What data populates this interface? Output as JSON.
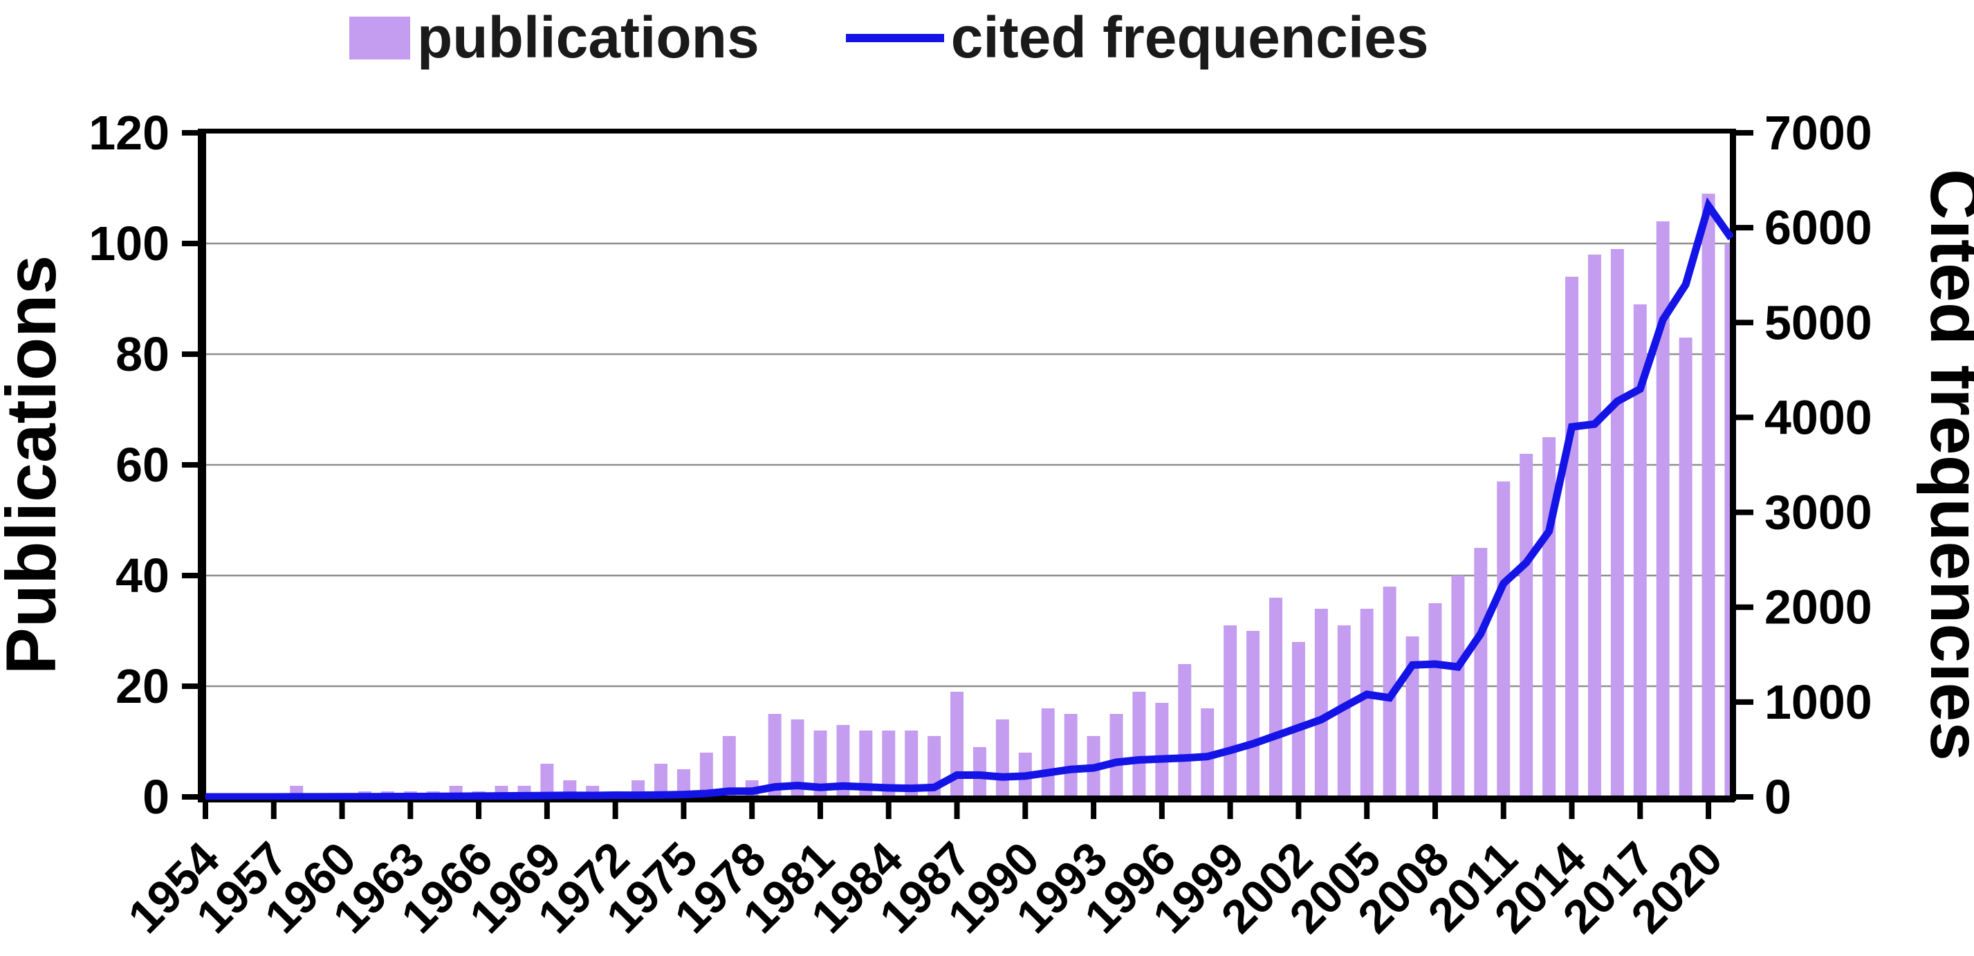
{
  "chart_data": {
    "type": "combo",
    "title": "",
    "xlabel": "",
    "ylabel_left": "Publications",
    "ylabel_right": "Cited frequencies",
    "ylim_left": [
      0,
      120
    ],
    "ylim_right": [
      0,
      7000
    ],
    "yticks_left": [
      0,
      20,
      40,
      60,
      80,
      100,
      120
    ],
    "yticks_right": [
      0,
      1000,
      2000,
      3000,
      4000,
      5000,
      6000,
      7000
    ],
    "xticks": [
      1954,
      1957,
      1960,
      1963,
      1966,
      1969,
      1972,
      1975,
      1978,
      1981,
      1984,
      1987,
      1990,
      1993,
      1996,
      1999,
      2002,
      2005,
      2008,
      2011,
      2014,
      2017,
      2020
    ],
    "grid": true,
    "legend_position": "top",
    "x": [
      1954,
      1955,
      1956,
      1957,
      1958,
      1959,
      1960,
      1961,
      1962,
      1963,
      1964,
      1965,
      1966,
      1967,
      1968,
      1969,
      1970,
      1971,
      1972,
      1973,
      1974,
      1975,
      1976,
      1977,
      1978,
      1979,
      1980,
      1981,
      1982,
      1983,
      1984,
      1985,
      1986,
      1987,
      1988,
      1989,
      1990,
      1991,
      1992,
      1993,
      1994,
      1995,
      1996,
      1997,
      1998,
      1999,
      2000,
      2001,
      2002,
      2003,
      2004,
      2005,
      2006,
      2007,
      2008,
      2009,
      2010,
      2011,
      2012,
      2013,
      2014,
      2015,
      2016,
      2017,
      2018,
      2019,
      2020,
      2021
    ],
    "series": [
      {
        "name": "publications",
        "type": "bar",
        "axis": "left",
        "color": "#c49df0",
        "values": [
          0,
          0,
          0,
          0,
          2,
          0,
          0,
          1,
          1,
          1,
          1,
          2,
          1,
          2,
          2,
          6,
          3,
          2,
          1,
          3,
          6,
          5,
          8,
          11,
          3,
          15,
          14,
          12,
          13,
          12,
          12,
          12,
          11,
          19,
          9,
          14,
          8,
          16,
          15,
          11,
          15,
          19,
          17,
          24,
          16,
          31,
          30,
          36,
          28,
          34,
          31,
          34,
          38,
          29,
          35,
          40,
          45,
          57,
          62,
          65,
          94,
          98,
          99,
          89,
          104,
          83,
          109,
          100
        ]
      },
      {
        "name": "cited frequencies",
        "type": "line",
        "axis": "right",
        "color": "#1414e6",
        "values": [
          0,
          0,
          0,
          0,
          1,
          1,
          2,
          2,
          3,
          4,
          5,
          6,
          8,
          10,
          12,
          14,
          16,
          15,
          18,
          17,
          20,
          25,
          36,
          60,
          60,
          105,
          120,
          100,
          115,
          105,
          95,
          90,
          100,
          230,
          230,
          210,
          220,
          255,
          290,
          305,
          365,
          390,
          400,
          410,
          425,
          490,
          560,
          645,
          730,
          815,
          950,
          1080,
          1045,
          1390,
          1400,
          1370,
          1720,
          2250,
          2470,
          2800,
          3900,
          3930,
          4170,
          4300,
          5030,
          5400,
          6230,
          5890
        ]
      }
    ]
  },
  "style": {
    "background": "#ffffff",
    "grid_color": "#8f8f8f",
    "axis_color": "#000000",
    "text_color": "#000000"
  }
}
